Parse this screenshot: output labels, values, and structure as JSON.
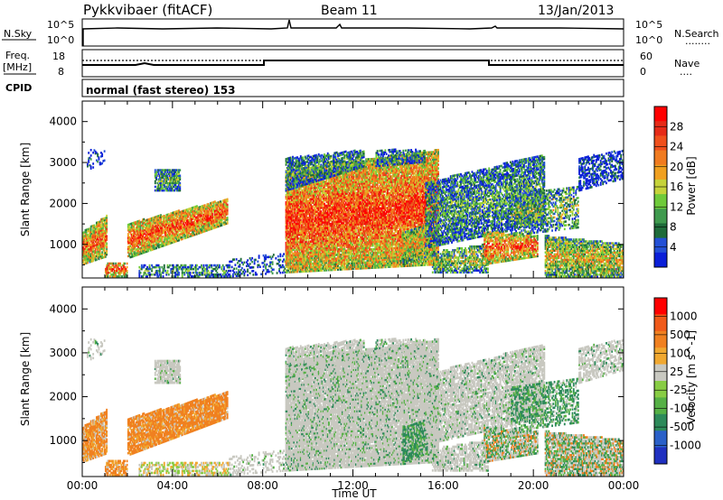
{
  "header": {
    "title": "Pykkvibaer (fitACF)",
    "beam": "Beam 11",
    "date": "13/Jan/2013"
  },
  "panels": {
    "nsky": {
      "label": "N.Sky",
      "left_ticks": [
        "10^5",
        "10^0"
      ],
      "right_ticks": [
        "10^5",
        "10^0"
      ],
      "right_label": "N.Search",
      "right_dots": "........"
    },
    "freq": {
      "label_line1": "Freq.",
      "label_line2": "[MHz]",
      "left_ticks": [
        "18",
        "8"
      ],
      "right_ticks": [
        "60",
        "0"
      ],
      "right_label": "Nave",
      "right_dots": "...."
    },
    "cpid": {
      "label": "CPID",
      "text": "normal (fast stereo) 153"
    }
  },
  "chart_data": [
    {
      "type": "heatmap",
      "name": "power",
      "ylabel": "Slant Range [km]",
      "xlabel": "",
      "y_ticks": [
        1000,
        2000,
        3000,
        4000
      ],
      "ylim": [
        180,
        4500
      ],
      "xlim_hours": [
        0,
        24
      ],
      "colorbar": {
        "label": "Power [dB]",
        "ticks": [
          "28",
          "24",
          "20",
          "16",
          "12",
          "8",
          "4"
        ],
        "colors": [
          "#0b1fd8",
          "#2450d6",
          "#1f6b3a",
          "#3f9a4e",
          "#6fca3a",
          "#c6d33a",
          "#f0a020",
          "#f07b20",
          "#f0501c",
          "#e62a17",
          "#ff0000"
        ]
      }
    },
    {
      "type": "heatmap",
      "name": "velocity",
      "ylabel": "Slant Range [km]",
      "xlabel": "Time UT",
      "y_ticks": [
        1000,
        2000,
        3000,
        4000
      ],
      "ylim": [
        180,
        4500
      ],
      "x_tick_labels": [
        "00:00",
        "04:00",
        "08:00",
        "12:00",
        "16:00",
        "20:00",
        "00:00"
      ],
      "colorbar": {
        "label": "Velocity [m s^-1]",
        "ticks": [
          "1000",
          "500",
          "100",
          "25",
          "-25",
          "-100",
          "-500",
          "-1000"
        ],
        "colors": [
          "#2030c0",
          "#2a60c8",
          "#2d8a5a",
          "#55b045",
          "#88cc44",
          "#c8c8c0",
          "#f0a830",
          "#f08020",
          "#f05a1a",
          "#ff0000"
        ]
      }
    }
  ]
}
